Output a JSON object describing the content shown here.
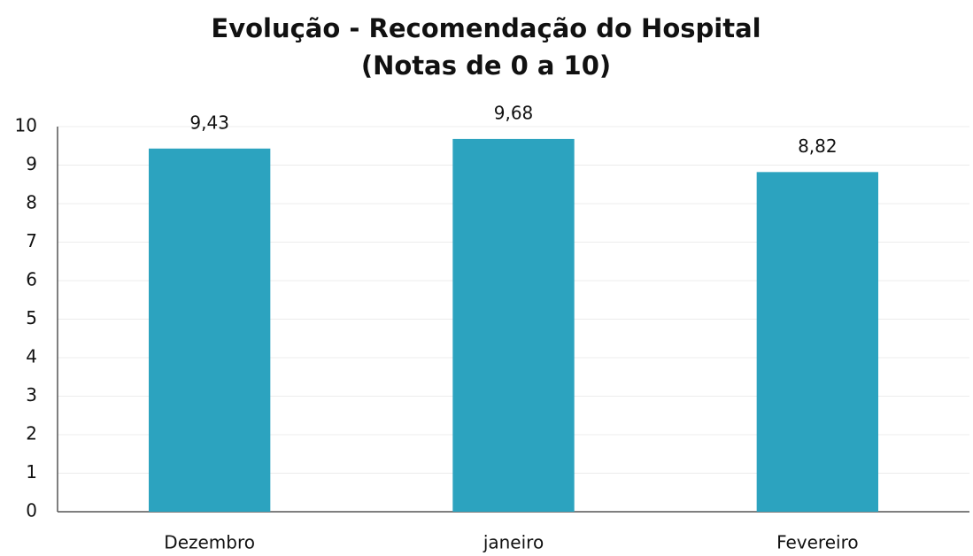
{
  "chart_data": {
    "type": "bar",
    "title": "Evolução - Recomendação do Hospital",
    "subtitle": "(Notas de 0 a 10)",
    "categories": [
      "Dezembro",
      "janeiro",
      "Fevereiro"
    ],
    "values": [
      9.43,
      9.68,
      8.82
    ],
    "value_labels": [
      "9,43",
      "9,68",
      "8,82"
    ],
    "color": "#2ca3bf",
    "ylim": [
      0,
      10
    ],
    "yticks": [
      0,
      1,
      2,
      3,
      4,
      5,
      6,
      7,
      8,
      9,
      10
    ],
    "grid": true
  }
}
